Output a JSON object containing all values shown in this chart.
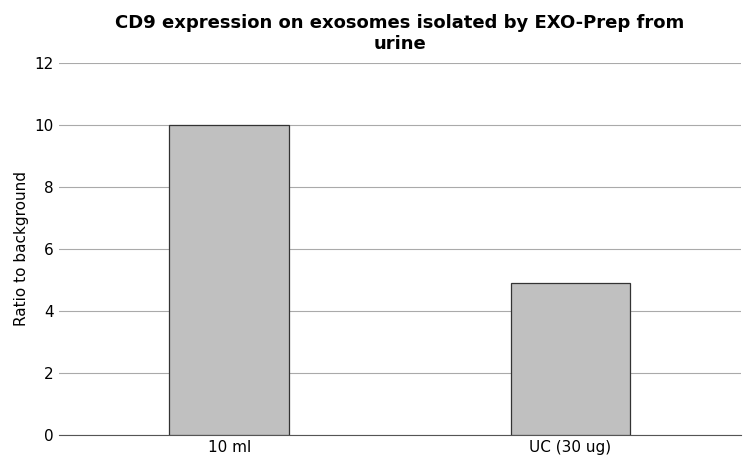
{
  "title": "CD9 expression on exosomes isolated by EXO-Prep from\nurine",
  "categories": [
    "10 ml",
    "UC (30 ug)"
  ],
  "values": [
    10.0,
    4.9
  ],
  "bar_color": "#c0c0c0",
  "bar_edgecolor": "#333333",
  "ylabel": "Ratio to background",
  "ylim": [
    0,
    12
  ],
  "yticks": [
    0,
    2,
    4,
    6,
    8,
    10,
    12
  ],
  "background_color": "#ffffff",
  "title_fontsize": 13,
  "ylabel_fontsize": 11,
  "tick_fontsize": 11,
  "bar_width": 0.35,
  "grid_color": "#aaaaaa",
  "grid_linewidth": 0.8,
  "figsize": [
    7.55,
    4.69
  ],
  "dpi": 100
}
